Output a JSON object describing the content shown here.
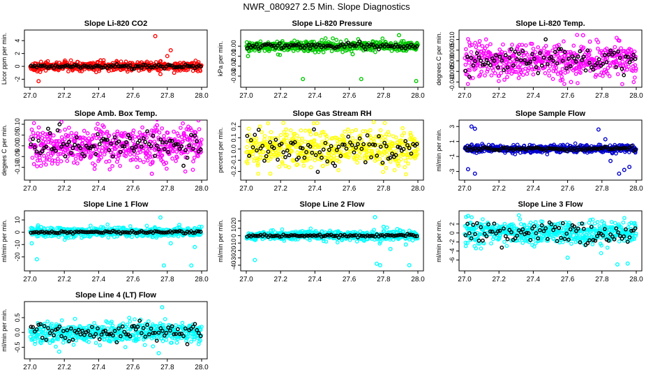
{
  "title": "NWR_080927  2.5 Min. Slope Diagnostics",
  "colors": {
    "axis": "#000000",
    "marker_black": "#000000"
  },
  "chart_data": [
    {
      "type": "scatter",
      "title": "Slope Li-820 CO2",
      "ylabel": "Licor ppm per min.",
      "xlim": [
        27.0,
        28.0
      ],
      "ylim": [
        -2.6,
        5.0
      ],
      "xticks": [
        27.0,
        27.2,
        27.4,
        27.6,
        27.8,
        28.0
      ],
      "xticklabels": [
        "27.0",
        "27.2",
        "27.4",
        "27.6",
        "27.8",
        "28.0"
      ],
      "yticks": [
        -2,
        0,
        2,
        4
      ],
      "yticklabels": [
        "-2",
        "0",
        "2",
        "4"
      ],
      "color": "#ff0000",
      "center": 0.0,
      "spread": 0.35,
      "outliers": [
        {
          "x": 27.73,
          "y": 4.7
        },
        {
          "x": 27.82,
          "y": 2.5
        },
        {
          "x": 27.8,
          "y": 1.6
        },
        {
          "x": 27.05,
          "y": -2.3
        },
        {
          "x": 27.76,
          "y": -1.2
        },
        {
          "x": 27.84,
          "y": -1.0
        }
      ],
      "black_center": 0.0,
      "black_spread": 0.15
    },
    {
      "type": "scatter",
      "title": "Slope Li-820 Pressure",
      "ylabel": "kPa per min.",
      "xlim": [
        27.0,
        28.0
      ],
      "ylim": [
        -0.037,
        0.012
      ],
      "xticks": [
        27.0,
        27.2,
        27.4,
        27.6,
        27.8,
        28.0
      ],
      "xticklabels": [
        "27.0",
        "27.2",
        "27.4",
        "27.6",
        "27.8",
        "28.0"
      ],
      "yticks": [
        -0.03,
        -0.02,
        -0.01,
        0.0
      ],
      "yticklabels": [
        "-0.03",
        "-0.02",
        "-0.01",
        "0.00"
      ],
      "color": "#00c800",
      "center": 0.0,
      "spread": 0.0025,
      "outliers": [
        {
          "x": 27.33,
          "y": -0.033
        },
        {
          "x": 27.67,
          "y": -0.033
        },
        {
          "x": 27.99,
          "y": -0.035
        },
        {
          "x": 27.89,
          "y": 0.011
        },
        {
          "x": 27.01,
          "y": -0.01
        },
        {
          "x": 27.62,
          "y": -0.008
        }
      ],
      "black_center": 0.0,
      "black_spread": 0.0015
    },
    {
      "type": "scatter",
      "title": "Slope Li-820 Temp.",
      "ylabel": "degrees C per min.",
      "xlim": [
        27.0,
        28.0
      ],
      "ylim": [
        -0.0105,
        0.0125
      ],
      "xticks": [
        27.0,
        27.2,
        27.4,
        27.6,
        27.8,
        28.0
      ],
      "xticklabels": [
        "27.0",
        "27.2",
        "27.4",
        "27.6",
        "27.8",
        "28.0"
      ],
      "yticks": [
        -0.01,
        -0.005,
        0.0,
        0.005,
        0.01
      ],
      "yticklabels": [
        "-0.010",
        "-0.005",
        "0.000",
        "0.005",
        "0.010"
      ],
      "color": "#ff00ff",
      "center": 0.0,
      "spread": 0.004,
      "outliers": [
        {
          "x": 27.57,
          "y": -0.009
        },
        {
          "x": 27.62,
          "y": -0.01
        },
        {
          "x": 27.69,
          "y": 0.012
        },
        {
          "x": 27.73,
          "y": 0.009
        }
      ],
      "black_center": 0.0,
      "black_spread": 0.003
    },
    {
      "type": "scatter",
      "title": "Slope Amb. Box Temp.",
      "ylabel": "degees C per min.",
      "xlim": [
        27.0,
        28.0
      ],
      "ylim": [
        -0.14,
        0.1
      ],
      "xticks": [
        27.0,
        27.2,
        27.4,
        27.6,
        27.8,
        28.0
      ],
      "xticklabels": [
        "27.0",
        "27.2",
        "27.4",
        "27.6",
        "27.8",
        "28.0"
      ],
      "yticks": [
        -0.1,
        -0.05,
        0.0,
        0.05,
        0.1
      ],
      "yticklabels": [
        "-0.10",
        "-0.05",
        "0.00",
        "0.05",
        "0.10"
      ],
      "color": "#ff00ff",
      "center": 0.0,
      "spread": 0.045,
      "outliers": [
        {
          "x": 27.71,
          "y": -0.13
        },
        {
          "x": 27.74,
          "y": 0.095
        }
      ],
      "black_center": 0.0,
      "black_spread": 0.035
    },
    {
      "type": "scatter",
      "title": "Slope Gas Stream RH",
      "ylabel": "percent per min.",
      "xlim": [
        27.0,
        28.0
      ],
      "ylim": [
        -0.24,
        0.22
      ],
      "xticks": [
        27.0,
        27.2,
        27.4,
        27.6,
        27.8,
        28.0
      ],
      "xticklabels": [
        "27.0",
        "27.2",
        "27.4",
        "27.6",
        "27.8",
        "28.0"
      ],
      "yticks": [
        -0.2,
        -0.1,
        0.0,
        0.1,
        0.2
      ],
      "yticklabels": [
        "-0.2",
        "-0.1",
        "0.0",
        "0.1",
        "0.2"
      ],
      "color": "#ffff00",
      "center": 0.0,
      "spread": 0.08,
      "outliers": [
        {
          "x": 27.08,
          "y": 0.2
        },
        {
          "x": 27.14,
          "y": -0.22
        }
      ],
      "black_center": 0.0,
      "black_spread": 0.07
    },
    {
      "type": "scatter",
      "title": "Slope Sample Flow",
      "ylabel": "ml/min per min.",
      "xlim": [
        27.0,
        28.0
      ],
      "ylim": [
        -3.6,
        3.3
      ],
      "xticks": [
        27.0,
        27.2,
        27.4,
        27.6,
        27.8,
        28.0
      ],
      "xticklabels": [
        "27.0",
        "27.2",
        "27.4",
        "27.6",
        "27.8",
        "28.0"
      ],
      "yticks": [
        -3,
        -1,
        1,
        3
      ],
      "yticklabels": [
        "-3",
        "-1",
        "1",
        "3"
      ],
      "color": "#0000cd",
      "center": 0.0,
      "spread": 0.25,
      "outliers": [
        {
          "x": 27.04,
          "y": 3.0
        },
        {
          "x": 27.06,
          "y": 2.7
        },
        {
          "x": 27.02,
          "y": -2.7
        },
        {
          "x": 27.06,
          "y": -3.3
        },
        {
          "x": 27.9,
          "y": -3.3
        },
        {
          "x": 27.93,
          "y": -2.8
        },
        {
          "x": 27.96,
          "y": -2.4
        },
        {
          "x": 27.85,
          "y": -1.6
        },
        {
          "x": 27.78,
          "y": 2.6
        },
        {
          "x": 27.82,
          "y": 1.3
        }
      ],
      "black_center": 0.0,
      "black_spread": 0.12
    },
    {
      "type": "scatter",
      "title": "Slope Line 1 Flow",
      "ylabel": "ml/min per min.",
      "xlim": [
        27.0,
        28.0
      ],
      "ylim": [
        -28.0,
        14.0
      ],
      "xticks": [
        27.0,
        27.2,
        27.4,
        27.6,
        27.8,
        28.0
      ],
      "xticklabels": [
        "27.0",
        "27.2",
        "27.4",
        "27.6",
        "27.8",
        "28.0"
      ],
      "yticks": [
        -20,
        -10,
        0,
        10
      ],
      "yticklabels": [
        "-20",
        "-10",
        "0",
        "10"
      ],
      "color": "#00ffff",
      "center": 0.0,
      "spread": 2.0,
      "outliers": [
        {
          "x": 27.04,
          "y": -22.0
        },
        {
          "x": 27.78,
          "y": -27.0
        },
        {
          "x": 27.94,
          "y": -27.0
        },
        {
          "x": 27.76,
          "y": 12.0
        },
        {
          "x": 27.87,
          "y": 6.0
        },
        {
          "x": 27.96,
          "y": -12.0
        },
        {
          "x": 27.82,
          "y": -9.0
        },
        {
          "x": 27.01,
          "y": -9.0
        }
      ],
      "black_center": 0.0,
      "black_spread": 0.5
    },
    {
      "type": "scatter",
      "title": "Slope Line 2 Flow",
      "ylabel": "ml/min per min.",
      "xlim": [
        27.0,
        28.0
      ],
      "ylim": [
        -42.0,
        28.0
      ],
      "xticks": [
        27.0,
        27.2,
        27.4,
        27.6,
        27.8,
        28.0
      ],
      "xticklabels": [
        "27.0",
        "27.2",
        "27.4",
        "27.6",
        "27.8",
        "28.0"
      ],
      "yticks": [
        -40,
        -30,
        -20,
        -10,
        0,
        10,
        20
      ],
      "yticklabels": [
        "-40",
        "-30",
        "-20",
        "-10",
        "0",
        "10",
        "20"
      ],
      "color": "#00ffff",
      "center": 0.0,
      "spread": 3.0,
      "outliers": [
        {
          "x": 27.05,
          "y": -33.0
        },
        {
          "x": 27.76,
          "y": -38.0
        },
        {
          "x": 27.78,
          "y": -40.0
        },
        {
          "x": 27.95,
          "y": -40.0
        },
        {
          "x": 27.75,
          "y": 25.0
        },
        {
          "x": 27.8,
          "y": 12.0
        },
        {
          "x": 27.88,
          "y": 9.0
        },
        {
          "x": 27.84,
          "y": -18.0
        },
        {
          "x": 27.93,
          "y": -12.0
        }
      ],
      "black_center": 0.0,
      "black_spread": 0.8
    },
    {
      "type": "scatter",
      "title": "Slope Line 3 Flow",
      "ylabel": "ml/min per min.",
      "xlim": [
        27.0,
        28.0
      ],
      "ylim": [
        -7.5,
        4.0
      ],
      "xticks": [
        27.0,
        27.2,
        27.4,
        27.6,
        27.8,
        28.0
      ],
      "xticklabels": [
        "27.0",
        "27.2",
        "27.4",
        "27.6",
        "27.8",
        "28.0"
      ],
      "yticks": [
        -6,
        -4,
        -2,
        0,
        2
      ],
      "yticklabels": [
        "-6",
        "-4",
        "-2",
        "0",
        "2"
      ],
      "color": "#00ffff",
      "center": 0.0,
      "spread": 1.3,
      "outliers": [
        {
          "x": 27.02,
          "y": 3.8
        },
        {
          "x": 27.89,
          "y": -7.0
        },
        {
          "x": 27.95,
          "y": -6.8
        },
        {
          "x": 27.6,
          "y": -5.5
        }
      ],
      "black_center": 0.0,
      "black_spread": 1.2
    },
    {
      "type": "scatter",
      "title": "Slope Line 4 (LT) Flow",
      "ylabel": "ml/min per min.",
      "xlim": [
        27.0,
        28.0
      ],
      "ylim": [
        -0.75,
        0.9
      ],
      "xticks": [
        27.0,
        27.2,
        27.4,
        27.6,
        27.8,
        28.0
      ],
      "xticklabels": [
        "27.0",
        "27.2",
        "27.4",
        "27.6",
        "27.8",
        "28.0"
      ],
      "yticks": [
        -0.5,
        0.0,
        0.5
      ],
      "yticklabels": [
        "-0.5",
        "0.0",
        "0.5"
      ],
      "color": "#00ffff",
      "center": 0.0,
      "spread": 0.18,
      "outliers": [
        {
          "x": 27.77,
          "y": 0.85
        },
        {
          "x": 27.75,
          "y": -0.7
        },
        {
          "x": 27.17,
          "y": -0.65
        }
      ],
      "black_center": 0.0,
      "black_spread": 0.15
    }
  ]
}
